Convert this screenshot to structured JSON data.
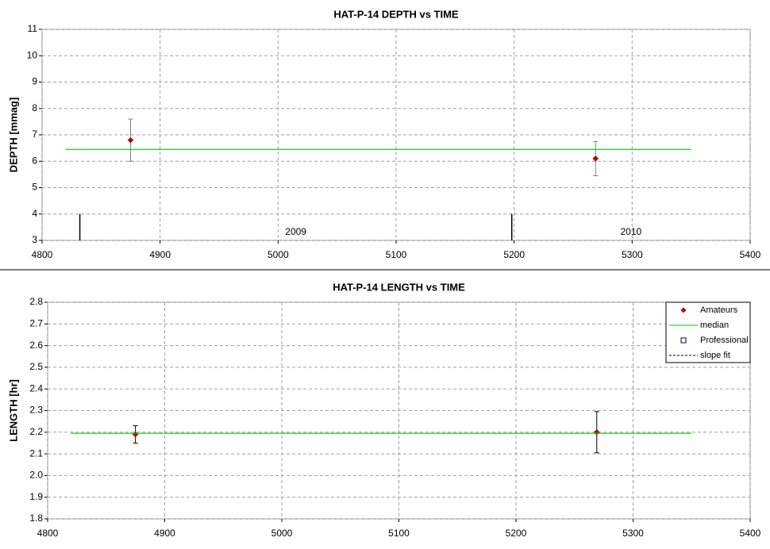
{
  "chart_data": [
    {
      "type": "scatter",
      "title": "HAT-P-14 DEPTH vs TIME",
      "ylabel": "DEPTH [mmag]",
      "xlim": [
        4800,
        5400
      ],
      "xticks": [
        4800,
        4900,
        5000,
        5100,
        5200,
        5300,
        5400
      ],
      "ylim": [
        3,
        11
      ],
      "yticks": [
        3,
        4,
        5,
        6,
        7,
        8,
        9,
        10,
        11
      ],
      "grid": true,
      "series": [
        {
          "color": "#c00000",
          "marker": "diamond",
          "error_color": "#808080",
          "x": [
            4875,
            5269
          ],
          "values": [
            6.8,
            6.1
          ],
          "errors": [
            0.8,
            0.65
          ]
        },
        {
          "color": "#00cc00",
          "line": "solid",
          "x": [
            4820,
            5350
          ],
          "values": [
            6.45,
            6.45
          ]
        }
      ],
      "year_markers": [
        {
          "x": 4832,
          "top": 4,
          "label": "2009"
        },
        {
          "x": 5198,
          "top": 4,
          "label": "2010"
        }
      ]
    },
    {
      "type": "scatter",
      "title": "HAT-P-14 LENGTH vs TIME",
      "ylabel": "LENGTH [hr]",
      "xlim": [
        4800,
        5400
      ],
      "xticks": [
        4800,
        4900,
        5000,
        5100,
        5200,
        5300,
        5400
      ],
      "ylim": [
        1.8,
        2.8
      ],
      "yticks": [
        1.8,
        1.9,
        {
          "value": 2,
          "label": "2.0"
        },
        2.1,
        2.2,
        2.3,
        2.4,
        2.5,
        2.6,
        2.7,
        2.8
      ],
      "grid": true,
      "legend": "top-right",
      "series": [
        {
          "name": "Amateurs",
          "color": "#c00000",
          "marker": "diamond",
          "error_color": "#000000",
          "x": [
            4875,
            5269
          ],
          "values": [
            2.19,
            2.2
          ],
          "errors": [
            0.04,
            0.095
          ]
        },
        {
          "name": "median",
          "color": "#00cc00",
          "line": "solid",
          "x": [
            4820,
            5350
          ],
          "values": [
            2.195,
            2.195
          ]
        },
        {
          "name": "Professional",
          "color": "#000080",
          "marker": "square",
          "x": [],
          "values": []
        },
        {
          "name": "slope fit",
          "color": "#000000",
          "line": "dashed",
          "x": [],
          "values": []
        }
      ]
    }
  ]
}
